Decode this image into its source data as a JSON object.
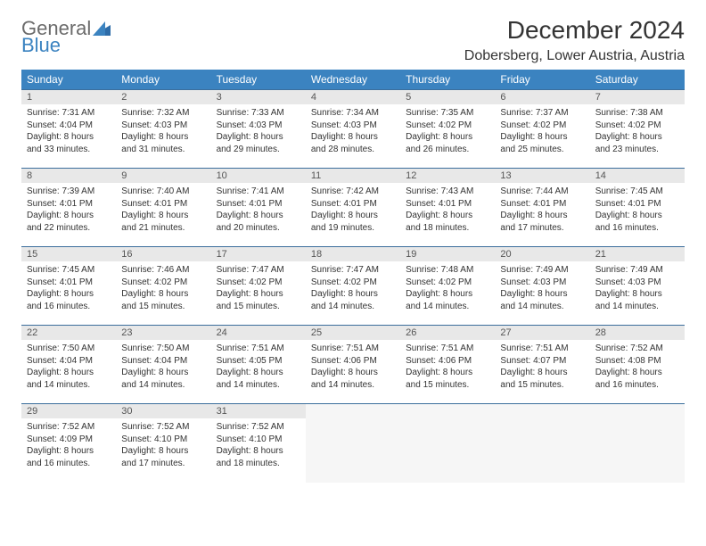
{
  "logo": {
    "line1": "General",
    "line2": "Blue"
  },
  "title": "December 2024",
  "location": "Dobersberg, Lower Austria, Austria",
  "colors": {
    "header_bg": "#3b83c0",
    "header_text": "#ffffff",
    "daynum_bg": "#e8e8e8",
    "border": "#3b6e9c",
    "logo_gray": "#6b6b6b",
    "logo_blue": "#3b83c0"
  },
  "weekdays": [
    "Sunday",
    "Monday",
    "Tuesday",
    "Wednesday",
    "Thursday",
    "Friday",
    "Saturday"
  ],
  "weeks": [
    [
      {
        "d": "1",
        "sr": "Sunrise: 7:31 AM",
        "ss": "Sunset: 4:04 PM",
        "dl1": "Daylight: 8 hours",
        "dl2": "and 33 minutes."
      },
      {
        "d": "2",
        "sr": "Sunrise: 7:32 AM",
        "ss": "Sunset: 4:03 PM",
        "dl1": "Daylight: 8 hours",
        "dl2": "and 31 minutes."
      },
      {
        "d": "3",
        "sr": "Sunrise: 7:33 AM",
        "ss": "Sunset: 4:03 PM",
        "dl1": "Daylight: 8 hours",
        "dl2": "and 29 minutes."
      },
      {
        "d": "4",
        "sr": "Sunrise: 7:34 AM",
        "ss": "Sunset: 4:03 PM",
        "dl1": "Daylight: 8 hours",
        "dl2": "and 28 minutes."
      },
      {
        "d": "5",
        "sr": "Sunrise: 7:35 AM",
        "ss": "Sunset: 4:02 PM",
        "dl1": "Daylight: 8 hours",
        "dl2": "and 26 minutes."
      },
      {
        "d": "6",
        "sr": "Sunrise: 7:37 AM",
        "ss": "Sunset: 4:02 PM",
        "dl1": "Daylight: 8 hours",
        "dl2": "and 25 minutes."
      },
      {
        "d": "7",
        "sr": "Sunrise: 7:38 AM",
        "ss": "Sunset: 4:02 PM",
        "dl1": "Daylight: 8 hours",
        "dl2": "and 23 minutes."
      }
    ],
    [
      {
        "d": "8",
        "sr": "Sunrise: 7:39 AM",
        "ss": "Sunset: 4:01 PM",
        "dl1": "Daylight: 8 hours",
        "dl2": "and 22 minutes."
      },
      {
        "d": "9",
        "sr": "Sunrise: 7:40 AM",
        "ss": "Sunset: 4:01 PM",
        "dl1": "Daylight: 8 hours",
        "dl2": "and 21 minutes."
      },
      {
        "d": "10",
        "sr": "Sunrise: 7:41 AM",
        "ss": "Sunset: 4:01 PM",
        "dl1": "Daylight: 8 hours",
        "dl2": "and 20 minutes."
      },
      {
        "d": "11",
        "sr": "Sunrise: 7:42 AM",
        "ss": "Sunset: 4:01 PM",
        "dl1": "Daylight: 8 hours",
        "dl2": "and 19 minutes."
      },
      {
        "d": "12",
        "sr": "Sunrise: 7:43 AM",
        "ss": "Sunset: 4:01 PM",
        "dl1": "Daylight: 8 hours",
        "dl2": "and 18 minutes."
      },
      {
        "d": "13",
        "sr": "Sunrise: 7:44 AM",
        "ss": "Sunset: 4:01 PM",
        "dl1": "Daylight: 8 hours",
        "dl2": "and 17 minutes."
      },
      {
        "d": "14",
        "sr": "Sunrise: 7:45 AM",
        "ss": "Sunset: 4:01 PM",
        "dl1": "Daylight: 8 hours",
        "dl2": "and 16 minutes."
      }
    ],
    [
      {
        "d": "15",
        "sr": "Sunrise: 7:45 AM",
        "ss": "Sunset: 4:01 PM",
        "dl1": "Daylight: 8 hours",
        "dl2": "and 16 minutes."
      },
      {
        "d": "16",
        "sr": "Sunrise: 7:46 AM",
        "ss": "Sunset: 4:02 PM",
        "dl1": "Daylight: 8 hours",
        "dl2": "and 15 minutes."
      },
      {
        "d": "17",
        "sr": "Sunrise: 7:47 AM",
        "ss": "Sunset: 4:02 PM",
        "dl1": "Daylight: 8 hours",
        "dl2": "and 15 minutes."
      },
      {
        "d": "18",
        "sr": "Sunrise: 7:47 AM",
        "ss": "Sunset: 4:02 PM",
        "dl1": "Daylight: 8 hours",
        "dl2": "and 14 minutes."
      },
      {
        "d": "19",
        "sr": "Sunrise: 7:48 AM",
        "ss": "Sunset: 4:02 PM",
        "dl1": "Daylight: 8 hours",
        "dl2": "and 14 minutes."
      },
      {
        "d": "20",
        "sr": "Sunrise: 7:49 AM",
        "ss": "Sunset: 4:03 PM",
        "dl1": "Daylight: 8 hours",
        "dl2": "and 14 minutes."
      },
      {
        "d": "21",
        "sr": "Sunrise: 7:49 AM",
        "ss": "Sunset: 4:03 PM",
        "dl1": "Daylight: 8 hours",
        "dl2": "and 14 minutes."
      }
    ],
    [
      {
        "d": "22",
        "sr": "Sunrise: 7:50 AM",
        "ss": "Sunset: 4:04 PM",
        "dl1": "Daylight: 8 hours",
        "dl2": "and 14 minutes."
      },
      {
        "d": "23",
        "sr": "Sunrise: 7:50 AM",
        "ss": "Sunset: 4:04 PM",
        "dl1": "Daylight: 8 hours",
        "dl2": "and 14 minutes."
      },
      {
        "d": "24",
        "sr": "Sunrise: 7:51 AM",
        "ss": "Sunset: 4:05 PM",
        "dl1": "Daylight: 8 hours",
        "dl2": "and 14 minutes."
      },
      {
        "d": "25",
        "sr": "Sunrise: 7:51 AM",
        "ss": "Sunset: 4:06 PM",
        "dl1": "Daylight: 8 hours",
        "dl2": "and 14 minutes."
      },
      {
        "d": "26",
        "sr": "Sunrise: 7:51 AM",
        "ss": "Sunset: 4:06 PM",
        "dl1": "Daylight: 8 hours",
        "dl2": "and 15 minutes."
      },
      {
        "d": "27",
        "sr": "Sunrise: 7:51 AM",
        "ss": "Sunset: 4:07 PM",
        "dl1": "Daylight: 8 hours",
        "dl2": "and 15 minutes."
      },
      {
        "d": "28",
        "sr": "Sunrise: 7:52 AM",
        "ss": "Sunset: 4:08 PM",
        "dl1": "Daylight: 8 hours",
        "dl2": "and 16 minutes."
      }
    ],
    [
      {
        "d": "29",
        "sr": "Sunrise: 7:52 AM",
        "ss": "Sunset: 4:09 PM",
        "dl1": "Daylight: 8 hours",
        "dl2": "and 16 minutes."
      },
      {
        "d": "30",
        "sr": "Sunrise: 7:52 AM",
        "ss": "Sunset: 4:10 PM",
        "dl1": "Daylight: 8 hours",
        "dl2": "and 17 minutes."
      },
      {
        "d": "31",
        "sr": "Sunrise: 7:52 AM",
        "ss": "Sunset: 4:10 PM",
        "dl1": "Daylight: 8 hours",
        "dl2": "and 18 minutes."
      },
      null,
      null,
      null,
      null
    ]
  ]
}
